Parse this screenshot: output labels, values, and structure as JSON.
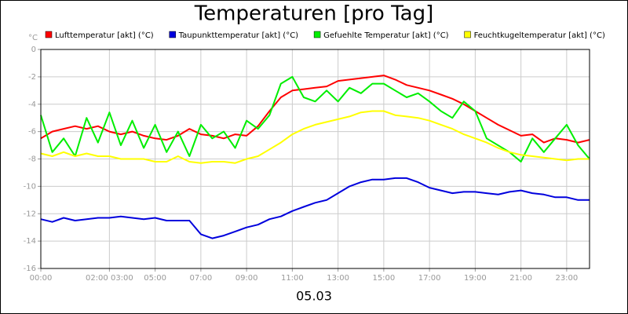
{
  "chart_data": {
    "type": "line",
    "title": "Temperaturen [pro Tag]",
    "y_label": "°C",
    "x_label": "05.03",
    "x": [
      0,
      0.5,
      1,
      1.5,
      2,
      2.5,
      3,
      3.5,
      4,
      4.5,
      5,
      5.5,
      6,
      6.5,
      7,
      7.5,
      8,
      8.5,
      9,
      9.5,
      10,
      10.5,
      11,
      11.5,
      12,
      12.5,
      13,
      13.5,
      14,
      14.5,
      15,
      15.5,
      16,
      16.5,
      17,
      17.5,
      18,
      18.5,
      19,
      19.5,
      20,
      20.5,
      21,
      21.5,
      22,
      22.5,
      23,
      23.5,
      24
    ],
    "series": [
      {
        "name": "Lufttemperatur [akt] (°C)",
        "color": "#ff0000",
        "values": [
          -6.5,
          -6.0,
          -5.8,
          -5.6,
          -5.8,
          -5.6,
          -6.0,
          -6.2,
          -6.0,
          -6.3,
          -6.5,
          -6.6,
          -6.3,
          -5.8,
          -6.2,
          -6.3,
          -6.5,
          -6.2,
          -6.3,
          -5.6,
          -4.5,
          -3.5,
          -3.0,
          -2.9,
          -2.8,
          -2.7,
          -2.3,
          -2.2,
          -2.1,
          -2.0,
          -1.9,
          -2.2,
          -2.6,
          -2.8,
          -3.0,
          -3.3,
          -3.6,
          -4.0,
          -4.5,
          -5.0,
          -5.5,
          -5.9,
          -6.3,
          -6.2,
          -6.8,
          -6.5,
          -6.6,
          -6.8,
          -6.6
        ]
      },
      {
        "name": "Taupunkttemperatur [akt] (°C)",
        "color": "#0000dd",
        "values": [
          -12.4,
          -12.6,
          -12.3,
          -12.5,
          -12.4,
          -12.3,
          -12.3,
          -12.2,
          -12.3,
          -12.4,
          -12.3,
          -12.5,
          -12.5,
          -12.5,
          -13.5,
          -13.8,
          -13.6,
          -13.3,
          -13.0,
          -12.8,
          -12.4,
          -12.2,
          -11.8,
          -11.5,
          -11.2,
          -11.0,
          -10.5,
          -10.0,
          -9.7,
          -9.5,
          -9.5,
          -9.4,
          -9.4,
          -9.7,
          -10.1,
          -10.3,
          -10.5,
          -10.4,
          -10.4,
          -10.5,
          -10.6,
          -10.4,
          -10.3,
          -10.5,
          -10.6,
          -10.8,
          -10.8,
          -11.0,
          -11.0
        ]
      },
      {
        "name": "Gefuehlte Temperatur [akt] (°C)",
        "color": "#00ee00",
        "values": [
          -4.8,
          -7.5,
          -6.5,
          -7.8,
          -5.0,
          -6.8,
          -4.6,
          -7.0,
          -5.2,
          -7.2,
          -5.5,
          -7.5,
          -6.0,
          -7.8,
          -5.5,
          -6.5,
          -6.0,
          -7.2,
          -5.2,
          -5.8,
          -4.8,
          -2.5,
          -2.0,
          -3.5,
          -3.8,
          -3.0,
          -3.8,
          -2.8,
          -3.2,
          -2.5,
          -2.5,
          -3.0,
          -3.5,
          -3.2,
          -3.8,
          -4.5,
          -5.0,
          -3.8,
          -4.5,
          -6.5,
          -7.0,
          -7.5,
          -8.2,
          -6.5,
          -7.5,
          -6.5,
          -5.5,
          -7.0,
          -8.0
        ]
      },
      {
        "name": "Feuchtkugeltemperatur [akt] (°C)",
        "color": "#ffff00",
        "values": [
          -7.6,
          -7.8,
          -7.5,
          -7.8,
          -7.6,
          -7.8,
          -7.8,
          -8.0,
          -8.0,
          -8.0,
          -8.2,
          -8.2,
          -7.8,
          -8.2,
          -8.3,
          -8.2,
          -8.2,
          -8.3,
          -8.0,
          -7.8,
          -7.3,
          -6.8,
          -6.2,
          -5.8,
          -5.5,
          -5.3,
          -5.1,
          -4.9,
          -4.6,
          -4.5,
          -4.5,
          -4.8,
          -4.9,
          -5.0,
          -5.2,
          -5.5,
          -5.8,
          -6.2,
          -6.5,
          -6.8,
          -7.2,
          -7.5,
          -7.7,
          -7.8,
          -7.9,
          -8.0,
          -8.1,
          -8.0,
          -8.0
        ]
      }
    ],
    "xlim": [
      0,
      24
    ],
    "xticks": [
      {
        "value": 0,
        "label": "00:00"
      },
      {
        "value": 3,
        "label": "02:00 03:00"
      },
      {
        "value": 5,
        "label": "05:00"
      },
      {
        "value": 7,
        "label": "07:00"
      },
      {
        "value": 9,
        "label": "09:00"
      },
      {
        "value": 11,
        "label": "11:00"
      },
      {
        "value": 13,
        "label": "13:00"
      },
      {
        "value": 15,
        "label": "15:00"
      },
      {
        "value": 17,
        "label": "17:00"
      },
      {
        "value": 19,
        "label": "19:00"
      },
      {
        "value": 21,
        "label": "21:00"
      },
      {
        "value": 23,
        "label": "23:00"
      }
    ],
    "ylim": [
      -16,
      0
    ],
    "yticks": [
      0,
      -2,
      -4,
      -6,
      -8,
      -10,
      -12,
      -14,
      -16
    ],
    "grid": true
  }
}
